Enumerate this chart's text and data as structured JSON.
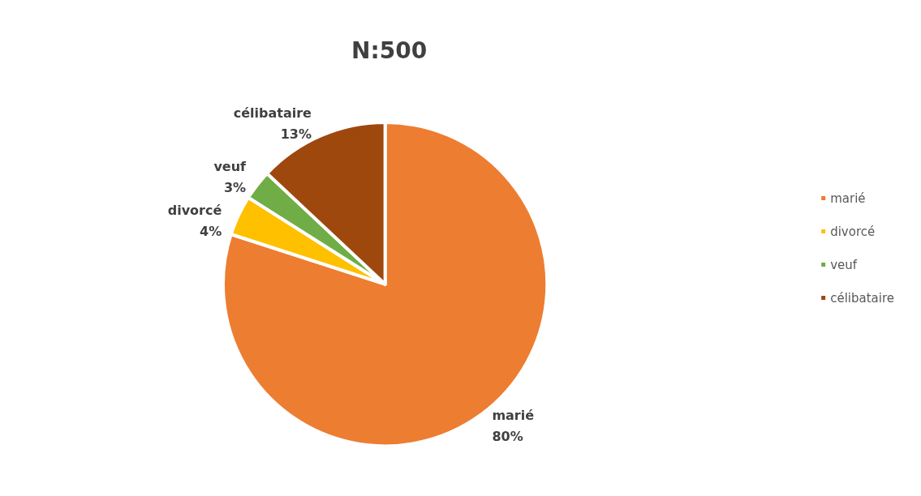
{
  "chart_data": {
    "type": "pie",
    "title": "N:500",
    "categories": [
      "marié",
      "divorcé",
      "veuf",
      "célibataire"
    ],
    "values": [
      80,
      4,
      3,
      13
    ],
    "colors": [
      "#ed7d31",
      "#ffc000",
      "#70ad47",
      "#9e480e"
    ],
    "value_labels": [
      "80%",
      "4%",
      "3%",
      "13%"
    ],
    "legend": "right"
  }
}
